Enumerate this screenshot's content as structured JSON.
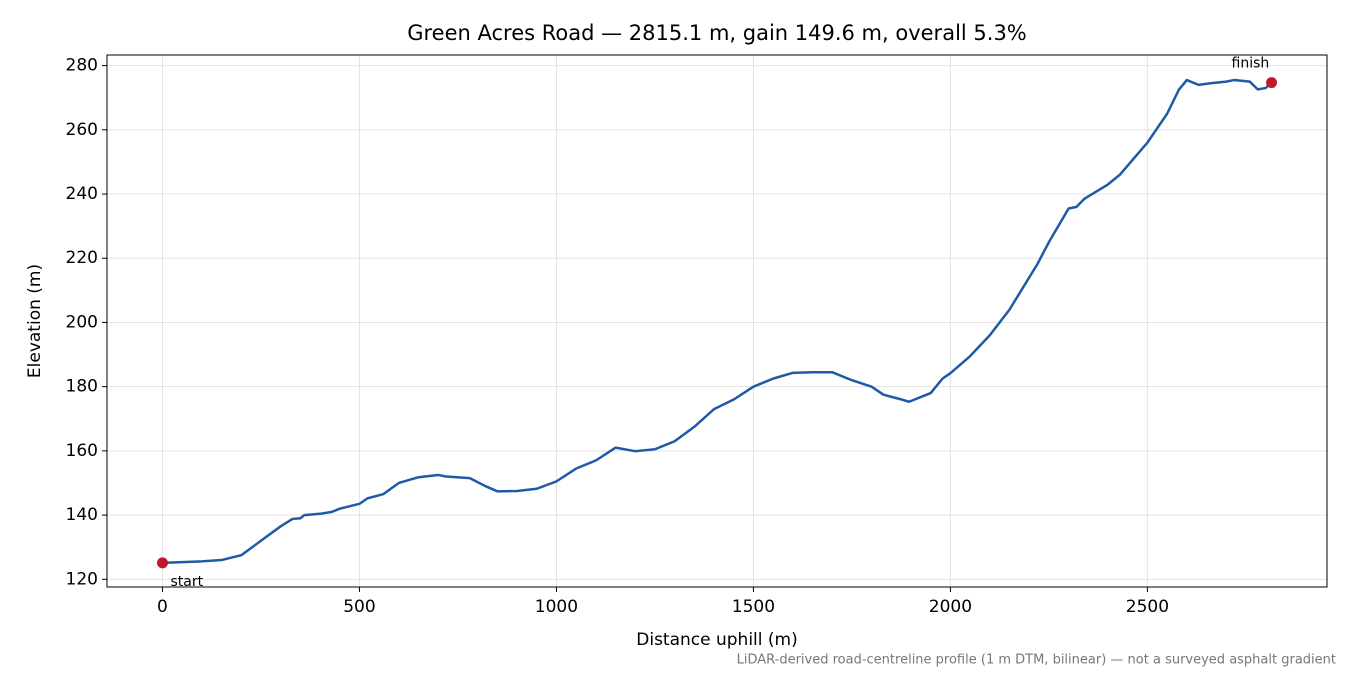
{
  "chart_data": {
    "type": "line",
    "title": "Green Acres Road — 2815.1 m, gain 149.6 m, overall 5.3%",
    "x_label": "Distance uphill (m)",
    "y_label": "Elevation (m)",
    "footnote": "LiDAR-derived road-centreline profile (1 m DTM, bilinear) — not a surveyed asphalt gradient",
    "x": [
      0,
      100,
      150,
      200,
      250,
      300,
      330,
      350,
      360,
      400,
      430,
      450,
      500,
      520,
      560,
      600,
      650,
      700,
      720,
      780,
      820,
      850,
      900,
      950,
      1000,
      1050,
      1100,
      1150,
      1200,
      1250,
      1300,
      1350,
      1400,
      1450,
      1500,
      1550,
      1600,
      1650,
      1700,
      1750,
      1800,
      1830,
      1870,
      1895,
      1950,
      1980,
      2000,
      2050,
      2100,
      2150,
      2200,
      2220,
      2250,
      2300,
      2320,
      2340,
      2400,
      2430,
      2500,
      2550,
      2580,
      2600,
      2630,
      2660,
      2700,
      2720,
      2760,
      2780,
      2800,
      2815.1
    ],
    "series": [
      {
        "color": "#1f5aa6",
        "values": [
          125.1,
          125.6,
          126,
          127.5,
          132,
          136.5,
          138.8,
          139,
          140,
          140.4,
          141,
          142,
          143.5,
          145.2,
          146.5,
          150,
          151.8,
          152.5,
          152,
          151.5,
          149,
          147.4,
          147.5,
          148.2,
          150.5,
          154.5,
          157,
          161,
          159.9,
          160.5,
          163,
          167.5,
          173,
          176,
          180,
          182.5,
          184.3,
          184.5,
          184.5,
          182,
          180,
          177.5,
          176.2,
          175.3,
          178,
          182.5,
          184.2,
          189.5,
          196,
          204,
          214,
          218,
          225,
          235.5,
          236,
          238.5,
          243,
          246,
          256,
          265,
          272.5,
          275.5,
          274,
          274.5,
          275,
          275.5,
          275,
          272.6,
          273,
          274.7
        ]
      }
    ],
    "annotations": [
      {
        "text": "start",
        "x": 0,
        "y": 125.1
      },
      {
        "text": "finish",
        "x": 2815.1,
        "y": 274.7
      }
    ],
    "marker_color": "#c0192b",
    "xlim": [
      -140.8,
      2955.9
    ],
    "ylim": [
      117.6,
      283.3
    ],
    "xticks": [
      0,
      500,
      1000,
      1500,
      2000,
      2500
    ],
    "yticks": [
      120,
      140,
      160,
      180,
      200,
      220,
      240,
      260,
      280
    ],
    "grid": true
  }
}
